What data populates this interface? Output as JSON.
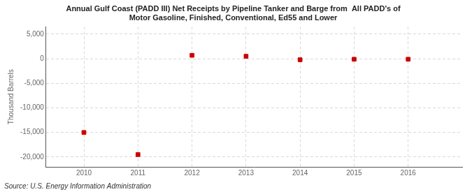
{
  "chart_data": {
    "type": "scatter",
    "title": "Annual Gulf Coast (PADD III) Net Receipts by Pipeline Tanker and Barge from  All PADD's of\nMotor Gasoline, Finished, Conventional, Ed55 and Lower",
    "ylabel": "Thousand Barrels",
    "annotations": [
      "Source: U.S. Energy Information Administration"
    ],
    "x": [
      2010,
      2011,
      2012,
      2013,
      2014,
      2015,
      2016
    ],
    "values": [
      -15000,
      -19500,
      700,
      500,
      -200,
      -100,
      -100
    ],
    "xlim": [
      2009.3,
      2017.0
    ],
    "xticks": [
      2010,
      2011,
      2012,
      2013,
      2014,
      2015,
      2016
    ],
    "ylim": [
      -22000,
      6500
    ],
    "yticks": [
      {
        "value": 5000,
        "label": "5,000"
      },
      0,
      {
        "value": -5000,
        "label": "-5,000"
      },
      {
        "value": -10000,
        "label": "-10,000"
      },
      {
        "value": -15000,
        "label": "-15,000"
      },
      {
        "value": -20000,
        "label": "-20,000"
      }
    ],
    "color": "#cc0000",
    "marker": "square",
    "grid": true
  }
}
